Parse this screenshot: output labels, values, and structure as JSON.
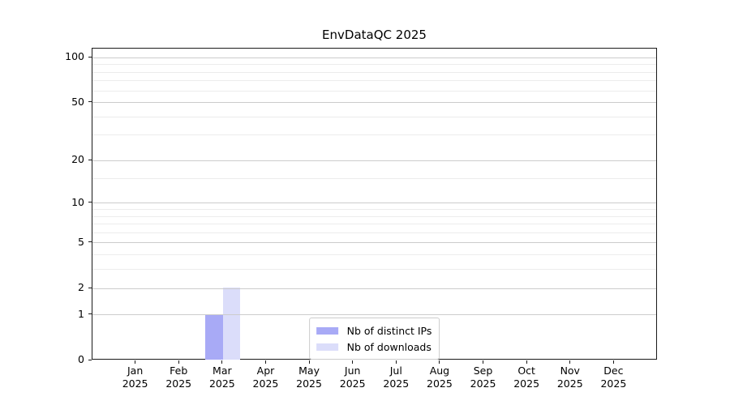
{
  "chart_data": {
    "type": "bar",
    "title": "EnvDataQC 2025",
    "categories": [
      "Jan\n2025",
      "Feb\n2025",
      "Mar\n2025",
      "Apr\n2025",
      "May\n2025",
      "Jun\n2025",
      "Jul\n2025",
      "Aug\n2025",
      "Sep\n2025",
      "Oct\n2025",
      "Nov\n2025",
      "Dec\n2025"
    ],
    "series": [
      {
        "name": "Nb of distinct IPs",
        "color": "#a8aaf6",
        "values": [
          0,
          0,
          1,
          0,
          0,
          0,
          0,
          0,
          0,
          0,
          0,
          0
        ]
      },
      {
        "name": "Nb of downloads",
        "color": "#dbddfa",
        "values": [
          0,
          0,
          2,
          0,
          0,
          0,
          0,
          0,
          0,
          0,
          0,
          0
        ]
      }
    ],
    "xlabel": "",
    "ylabel": "",
    "y_axis": {
      "scale": "log1p",
      "major_ticks": [
        0,
        1,
        2,
        5,
        10,
        20,
        50,
        100
      ],
      "minor_ticks": [
        3,
        4,
        6,
        7,
        8,
        9,
        15,
        30,
        40,
        60,
        70,
        80,
        90
      ],
      "ylim": [
        0,
        115
      ]
    },
    "legend": {
      "location": "lower center",
      "entries": [
        "Nb of distinct IPs",
        "Nb of downloads"
      ]
    },
    "grid": {
      "major_color": "#cccccc",
      "minor_color": "#ececec"
    },
    "colors": {
      "axis": "#1a1a1a",
      "text": "#000000",
      "background": "#ffffff"
    }
  }
}
